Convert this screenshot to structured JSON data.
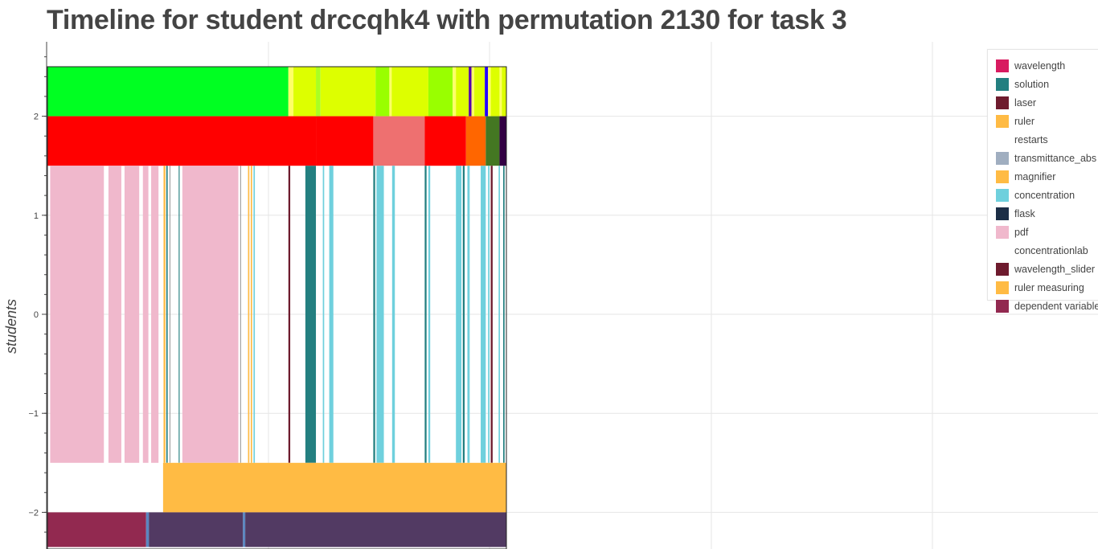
{
  "title": "Timeline for student drccqhk4 with permutation 2130 for task 3",
  "chart_data": {
    "type": "timeline",
    "ylabel": "students",
    "ylim": [
      -2.35,
      2.75
    ],
    "yticks": [
      {
        "value": 2,
        "label": "2"
      },
      {
        "value": 1,
        "label": "1"
      },
      {
        "value": 0,
        "label": "0"
      },
      {
        "value": -1,
        "label": "−1"
      },
      {
        "value": -2,
        "label": "−2"
      }
    ],
    "xlim": [
      0,
      1
    ],
    "rows": [
      {
        "name": "top-simulation-row",
        "y_range": [
          2,
          2.5
        ],
        "segments": [
          {
            "start": 0.0,
            "end": 0.525,
            "color": "#00ff22"
          },
          {
            "start": 0.525,
            "end": 0.536,
            "color": "#ffff66"
          },
          {
            "start": 0.536,
            "end": 0.585,
            "color": "#ddff00"
          },
          {
            "start": 0.585,
            "end": 0.595,
            "color": "#aaff22"
          },
          {
            "start": 0.595,
            "end": 0.715,
            "color": "#ddff00"
          },
          {
            "start": 0.715,
            "end": 0.745,
            "color": "#99ff00"
          },
          {
            "start": 0.745,
            "end": 0.75,
            "color": "#ffff66"
          },
          {
            "start": 0.75,
            "end": 0.83,
            "color": "#ddff00"
          },
          {
            "start": 0.83,
            "end": 0.883,
            "color": "#99ff00"
          },
          {
            "start": 0.883,
            "end": 0.89,
            "color": "#ffff66"
          },
          {
            "start": 0.89,
            "end": 0.918,
            "color": "#ddff00"
          },
          {
            "start": 0.918,
            "end": 0.924,
            "color": "#5500aa"
          },
          {
            "start": 0.924,
            "end": 0.93,
            "color": "#ffff66"
          },
          {
            "start": 0.93,
            "end": 0.953,
            "color": "#ddff00"
          },
          {
            "start": 0.953,
            "end": 0.96,
            "color": "#2200ff"
          },
          {
            "start": 0.96,
            "end": 0.966,
            "color": "#ffff66"
          },
          {
            "start": 0.966,
            "end": 0.985,
            "color": "#ddff00"
          },
          {
            "start": 0.985,
            "end": 0.99,
            "color": "#ffff66"
          },
          {
            "start": 0.99,
            "end": 1.0,
            "color": "#ddff00"
          }
        ]
      },
      {
        "name": "second-simulation-row",
        "y_range": [
          1.5,
          2
        ],
        "segments": [
          {
            "start": 0.0,
            "end": 0.585,
            "color": "#ff0000"
          },
          {
            "start": 0.585,
            "end": 0.71,
            "color": "#ff0000"
          },
          {
            "start": 0.71,
            "end": 0.822,
            "color": "#ee7070"
          },
          {
            "start": 0.822,
            "end": 0.912,
            "color": "#ff0000"
          },
          {
            "start": 0.912,
            "end": 0.955,
            "color": "#ff6600"
          },
          {
            "start": 0.955,
            "end": 0.985,
            "color": "#447722"
          },
          {
            "start": 0.985,
            "end": 1.0,
            "color": "#330044"
          }
        ]
      },
      {
        "name": "tools-row",
        "y_range": [
          -1.5,
          1.5
        ],
        "segments": [
          {
            "start": 0.006,
            "end": 0.123,
            "color": "#f0b8cc"
          },
          {
            "start": 0.133,
            "end": 0.161,
            "color": "#f0b8cc"
          },
          {
            "start": 0.168,
            "end": 0.2,
            "color": "#f0b8cc"
          },
          {
            "start": 0.208,
            "end": 0.22,
            "color": "#f0b8cc"
          },
          {
            "start": 0.226,
            "end": 0.242,
            "color": "#f0b8cc"
          },
          {
            "start": 0.253,
            "end": 0.257,
            "color": "#ffbb44"
          },
          {
            "start": 0.259,
            "end": 0.262,
            "color": "#237f80"
          },
          {
            "start": 0.266,
            "end": 0.268,
            "color": "#a0a0a0"
          },
          {
            "start": 0.286,
            "end": 0.288,
            "color": "#237f80"
          },
          {
            "start": 0.294,
            "end": 0.416,
            "color": "#f0b8cc"
          },
          {
            "start": 0.42,
            "end": 0.422,
            "color": "#a0a0a0"
          },
          {
            "start": 0.437,
            "end": 0.44,
            "color": "#ffbb44"
          },
          {
            "start": 0.443,
            "end": 0.446,
            "color": "#ffbb44"
          },
          {
            "start": 0.449,
            "end": 0.452,
            "color": "#6fd0dd"
          },
          {
            "start": 0.525,
            "end": 0.529,
            "color": "#6e1b2e"
          },
          {
            "start": 0.562,
            "end": 0.585,
            "color": "#237f80"
          },
          {
            "start": 0.6,
            "end": 0.603,
            "color": "#6fd0dd"
          },
          {
            "start": 0.614,
            "end": 0.623,
            "color": "#6fd0dd"
          },
          {
            "start": 0.71,
            "end": 0.714,
            "color": "#237f80"
          },
          {
            "start": 0.717,
            "end": 0.733,
            "color": "#6fd0dd"
          },
          {
            "start": 0.751,
            "end": 0.757,
            "color": "#6fd0dd"
          },
          {
            "start": 0.822,
            "end": 0.826,
            "color": "#237f80"
          },
          {
            "start": 0.83,
            "end": 0.834,
            "color": "#6fd0dd"
          },
          {
            "start": 0.89,
            "end": 0.902,
            "color": "#6fd0dd"
          },
          {
            "start": 0.905,
            "end": 0.909,
            "color": "#237f80"
          },
          {
            "start": 0.915,
            "end": 0.92,
            "color": "#6fd0dd"
          },
          {
            "start": 0.944,
            "end": 0.955,
            "color": "#6fd0dd"
          },
          {
            "start": 0.96,
            "end": 0.963,
            "color": "#6fd0dd"
          },
          {
            "start": 0.966,
            "end": 0.97,
            "color": "#6e1b2e"
          },
          {
            "start": 0.983,
            "end": 0.986,
            "color": "#6fd0dd"
          },
          {
            "start": 0.993,
            "end": 0.996,
            "color": "#237f80"
          }
        ]
      },
      {
        "name": "ruler-row",
        "y_range": [
          -2,
          -1.5
        ],
        "segments": [
          {
            "start": 0.252,
            "end": 1.0,
            "color": "#ffbb44"
          }
        ]
      },
      {
        "name": "dependent-variable-row",
        "y_range": [
          -2.35,
          -2
        ],
        "segments": [
          {
            "start": 0.0,
            "end": 0.215,
            "color": "#922950"
          },
          {
            "start": 0.215,
            "end": 0.221,
            "color": "#5a86c0"
          },
          {
            "start": 0.221,
            "end": 0.426,
            "color": "#523a63"
          },
          {
            "start": 0.426,
            "end": 0.431,
            "color": "#5a86c0"
          },
          {
            "start": 0.431,
            "end": 1.0,
            "color": "#523a63"
          }
        ]
      }
    ],
    "legend": {
      "placement": "top-right",
      "entries": [
        {
          "label": "wavelength",
          "color": "#d81b60"
        },
        {
          "label": "solution",
          "color": "#237f80"
        },
        {
          "label": "laser",
          "color": "#6e1b2e"
        },
        {
          "label": "ruler",
          "color": "#ffbb44"
        },
        {
          "label": "restarts",
          "color": "#ffffff"
        },
        {
          "label": "transmittance_abs",
          "color": "#a0aec0"
        },
        {
          "label": "magnifier",
          "color": "#ffbb44"
        },
        {
          "label": "concentration",
          "color": "#6fd0dd"
        },
        {
          "label": "flask",
          "color": "#1c2e46"
        },
        {
          "label": "pdf",
          "color": "#f0b8cc"
        },
        {
          "label": "concentrationlab",
          "color": "#ffffff"
        },
        {
          "label": "wavelength_slider",
          "color": "#6e1b2e"
        },
        {
          "label": "ruler measuring",
          "color": "#ffbb44"
        },
        {
          "label": "dependent variable",
          "color": "#922950"
        }
      ]
    },
    "grid": true
  }
}
